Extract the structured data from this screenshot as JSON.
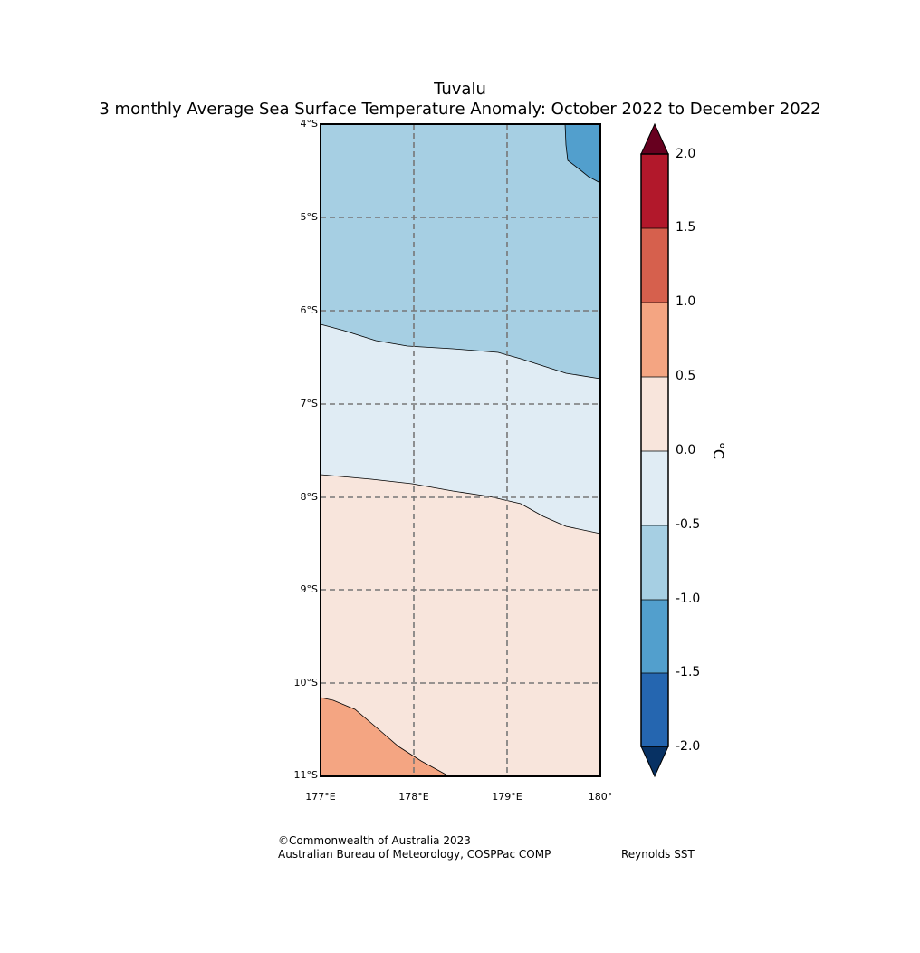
{
  "title": {
    "line1": "Tuvalu",
    "line2": "3 monthly Average Sea Surface Temperature Anomaly: October 2022 to December 2022"
  },
  "map": {
    "region": "Tuvalu",
    "lat_labels": [
      "4°S",
      "5°S",
      "6°S",
      "7°S",
      "8°S",
      "9°S",
      "10°S",
      "11°S"
    ],
    "lon_labels": [
      "177°E",
      "178°E",
      "179°E",
      "180°"
    ],
    "lat_range": [
      -11,
      -4
    ],
    "lon_range": [
      177,
      180
    ]
  },
  "colorbar": {
    "unit": "°C",
    "tick_labels": [
      "2.0",
      "1.5",
      "1.0",
      "0.5",
      "0.0",
      "-0.5",
      "-1.0",
      "-1.5",
      "-2.0"
    ],
    "colors": {
      "above_max": "#67001f",
      "1.5_to_2.0": "#b2182b",
      "1.0_to_1.5": "#d6604d",
      "0.5_to_1.0": "#f4a582",
      "0.0_to_0.5": "#f8e5dc",
      "-0.5_to_0.0": "#e0ecf4",
      "-1.0_to_-0.5": "#a6cfe3",
      "-1.5_to_-1.0": "#529fcd",
      "-2.0_to_-1.5": "#2566b0",
      "below_min": "#073163"
    }
  },
  "credits": {
    "copyright": "©Commonwealth of Australia 2023",
    "agency": "Australian Bureau of Meteorology, COSPPac COMP",
    "source": "Reynolds SST"
  }
}
